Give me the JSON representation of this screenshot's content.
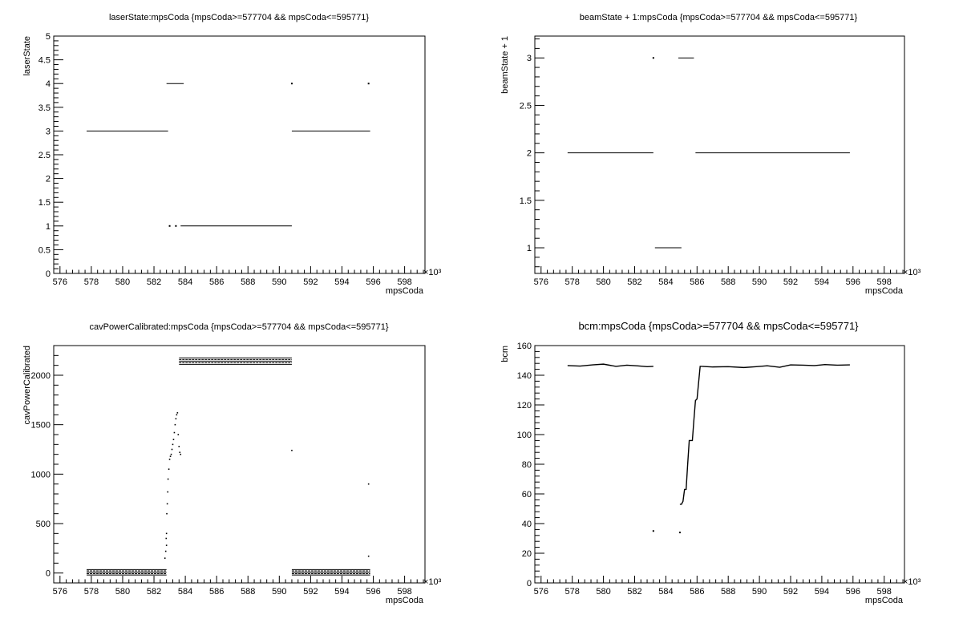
{
  "x_exponent_label": "×10³",
  "chart_data": [
    {
      "type": "line",
      "title": "laserState:mpsCoda {mpsCoda>=577704 && mpsCoda<=595771}",
      "xlabel": "mpsCoda",
      "ylabel": "laserState",
      "xlim": [
        575.6,
        599.3
      ],
      "ylim": [
        0,
        5
      ],
      "xticks": [
        576,
        578,
        580,
        582,
        584,
        586,
        588,
        590,
        592,
        594,
        596,
        598
      ],
      "xtick_labels": [
        "576",
        "578",
        "580",
        "582",
        "584",
        "586",
        "588",
        "590",
        "592",
        "594",
        "596",
        "598"
      ],
      "yticks": [
        0,
        0.5,
        1,
        1.5,
        2,
        2.5,
        3,
        3.5,
        4,
        4.5,
        5
      ],
      "ytick_labels": [
        "0",
        "0.5",
        "1",
        "1.5",
        "2",
        "2.5",
        "3",
        "3.5",
        "4",
        "4.5",
        "5"
      ],
      "segments": [
        {
          "x": [
            577.7,
            582.9
          ],
          "y": 3
        },
        {
          "x": [
            582.8,
            583.9
          ],
          "y": 4
        },
        {
          "x": [
            583.7,
            590.8
          ],
          "y": 1
        },
        {
          "x": [
            590.8,
            595.8
          ],
          "y": 3
        }
      ],
      "points": [
        {
          "x": 583.0,
          "y": 1
        },
        {
          "x": 583.4,
          "y": 1
        },
        {
          "x": 590.8,
          "y": 4
        },
        {
          "x": 595.7,
          "y": 4
        }
      ]
    },
    {
      "type": "line",
      "title": "beamState + 1:mpsCoda {mpsCoda>=577704 && mpsCoda<=595771}",
      "xlabel": "mpsCoda",
      "ylabel": "beamState + 1",
      "xlim": [
        575.6,
        599.3
      ],
      "ylim": [
        0.73,
        3.23
      ],
      "xticks": [
        576,
        578,
        580,
        582,
        584,
        586,
        588,
        590,
        592,
        594,
        596,
        598
      ],
      "xtick_labels": [
        "576",
        "578",
        "580",
        "582",
        "584",
        "586",
        "588",
        "590",
        "592",
        "594",
        "596",
        "598"
      ],
      "yticks": [
        1,
        1.5,
        2,
        2.5,
        3
      ],
      "ytick_labels": [
        "1",
        "1.5",
        "2",
        "2.5",
        "3"
      ],
      "segments": [
        {
          "x": [
            577.7,
            583.2
          ],
          "y": 2
        },
        {
          "x": [
            583.3,
            585.0
          ],
          "y": 1
        },
        {
          "x": [
            584.8,
            585.8
          ],
          "y": 3
        },
        {
          "x": [
            585.9,
            595.8
          ],
          "y": 2
        }
      ],
      "points": [
        {
          "x": 583.2,
          "y": 3
        }
      ]
    },
    {
      "type": "scatter",
      "title": "cavPowerCalibrated:mpsCoda {mpsCoda>=577704 && mpsCoda<=595771}",
      "xlabel": "mpsCoda",
      "ylabel": "cavPowerCalibrated",
      "xlim": [
        575.6,
        599.3
      ],
      "ylim": [
        -100,
        2300
      ],
      "xticks": [
        576,
        578,
        580,
        582,
        584,
        586,
        588,
        590,
        592,
        594,
        596,
        598
      ],
      "xtick_labels": [
        "576",
        "578",
        "580",
        "582",
        "584",
        "586",
        "588",
        "590",
        "592",
        "594",
        "596",
        "598"
      ],
      "yticks": [
        0,
        500,
        1000,
        1500,
        2000
      ],
      "ytick_labels": [
        "0",
        "500",
        "1000",
        "1500",
        "2000"
      ],
      "bands": [
        {
          "x": [
            577.7,
            582.8
          ],
          "y": [
            -20,
            35
          ]
        },
        {
          "x": [
            583.6,
            590.8
          ],
          "y": [
            2110,
            2175
          ]
        },
        {
          "x": [
            590.8,
            595.8
          ],
          "y": [
            -20,
            35
          ]
        }
      ],
      "scatter_points": [
        [
          582.7,
          150
        ],
        [
          582.75,
          220
        ],
        [
          582.8,
          280
        ],
        [
          582.78,
          350
        ],
        [
          582.8,
          400
        ],
        [
          582.82,
          600
        ],
        [
          582.85,
          700
        ],
        [
          582.88,
          820
        ],
        [
          582.9,
          950
        ],
        [
          582.95,
          1050
        ],
        [
          583.0,
          1150
        ],
        [
          583.05,
          1180
        ],
        [
          583.1,
          1200
        ],
        [
          583.15,
          1250
        ],
        [
          583.2,
          1300
        ],
        [
          583.25,
          1350
        ],
        [
          583.3,
          1420
        ],
        [
          583.35,
          1500
        ],
        [
          583.4,
          1560
        ],
        [
          583.45,
          1600
        ],
        [
          583.5,
          1620
        ],
        [
          583.55,
          1400
        ],
        [
          583.6,
          1280
        ],
        [
          583.65,
          1220
        ],
        [
          583.7,
          1200
        ],
        [
          590.8,
          1240
        ],
        [
          595.7,
          900
        ],
        [
          595.7,
          170
        ]
      ]
    },
    {
      "type": "line",
      "title": "bcm:mpsCoda {mpsCoda>=577704 && mpsCoda<=595771}",
      "xlabel": "mpsCoda",
      "ylabel": "bcm",
      "xlim": [
        575.6,
        599.3
      ],
      "ylim": [
        0,
        160
      ],
      "xticks": [
        576,
        578,
        580,
        582,
        584,
        586,
        588,
        590,
        592,
        594,
        596,
        598
      ],
      "xtick_labels": [
        "576",
        "578",
        "580",
        "582",
        "584",
        "586",
        "588",
        "590",
        "592",
        "594",
        "596",
        "598"
      ],
      "yticks": [
        0,
        20,
        40,
        60,
        80,
        100,
        120,
        140,
        160
      ],
      "ytick_labels": [
        "0",
        "20",
        "40",
        "60",
        "80",
        "100",
        "120",
        "140",
        "160"
      ],
      "series": [
        {
          "x": [
            577.7,
            578.5,
            579.3,
            580.0,
            580.8,
            581.5,
            582.2,
            582.8,
            583.2
          ],
          "y": [
            146.5,
            146.2,
            147.0,
            147.5,
            146.0,
            146.8,
            146.3,
            145.8,
            146.0
          ]
        },
        {
          "x": [
            584.9,
            585.0,
            585.1,
            585.2,
            585.3,
            585.4,
            585.5,
            585.7,
            585.8,
            585.9,
            586.0,
            586.1,
            586.2,
            586.3
          ],
          "y": [
            53,
            53,
            55,
            63,
            63,
            80,
            96,
            96,
            110,
            123,
            124,
            135,
            146,
            146
          ]
        },
        {
          "x": [
            586.3,
            587.0,
            588.0,
            589.0,
            589.8,
            590.5,
            591.3,
            592.0,
            592.8,
            593.5,
            594.2,
            595.0,
            595.8
          ],
          "y": [
            146,
            145.6,
            145.8,
            145.2,
            145.8,
            146.4,
            145.4,
            147.0,
            146.8,
            146.5,
            147.2,
            146.8,
            147.0
          ]
        }
      ],
      "points": [
        {
          "x": 583.2,
          "y": 35
        },
        {
          "x": 584.9,
          "y": 34
        }
      ]
    }
  ]
}
